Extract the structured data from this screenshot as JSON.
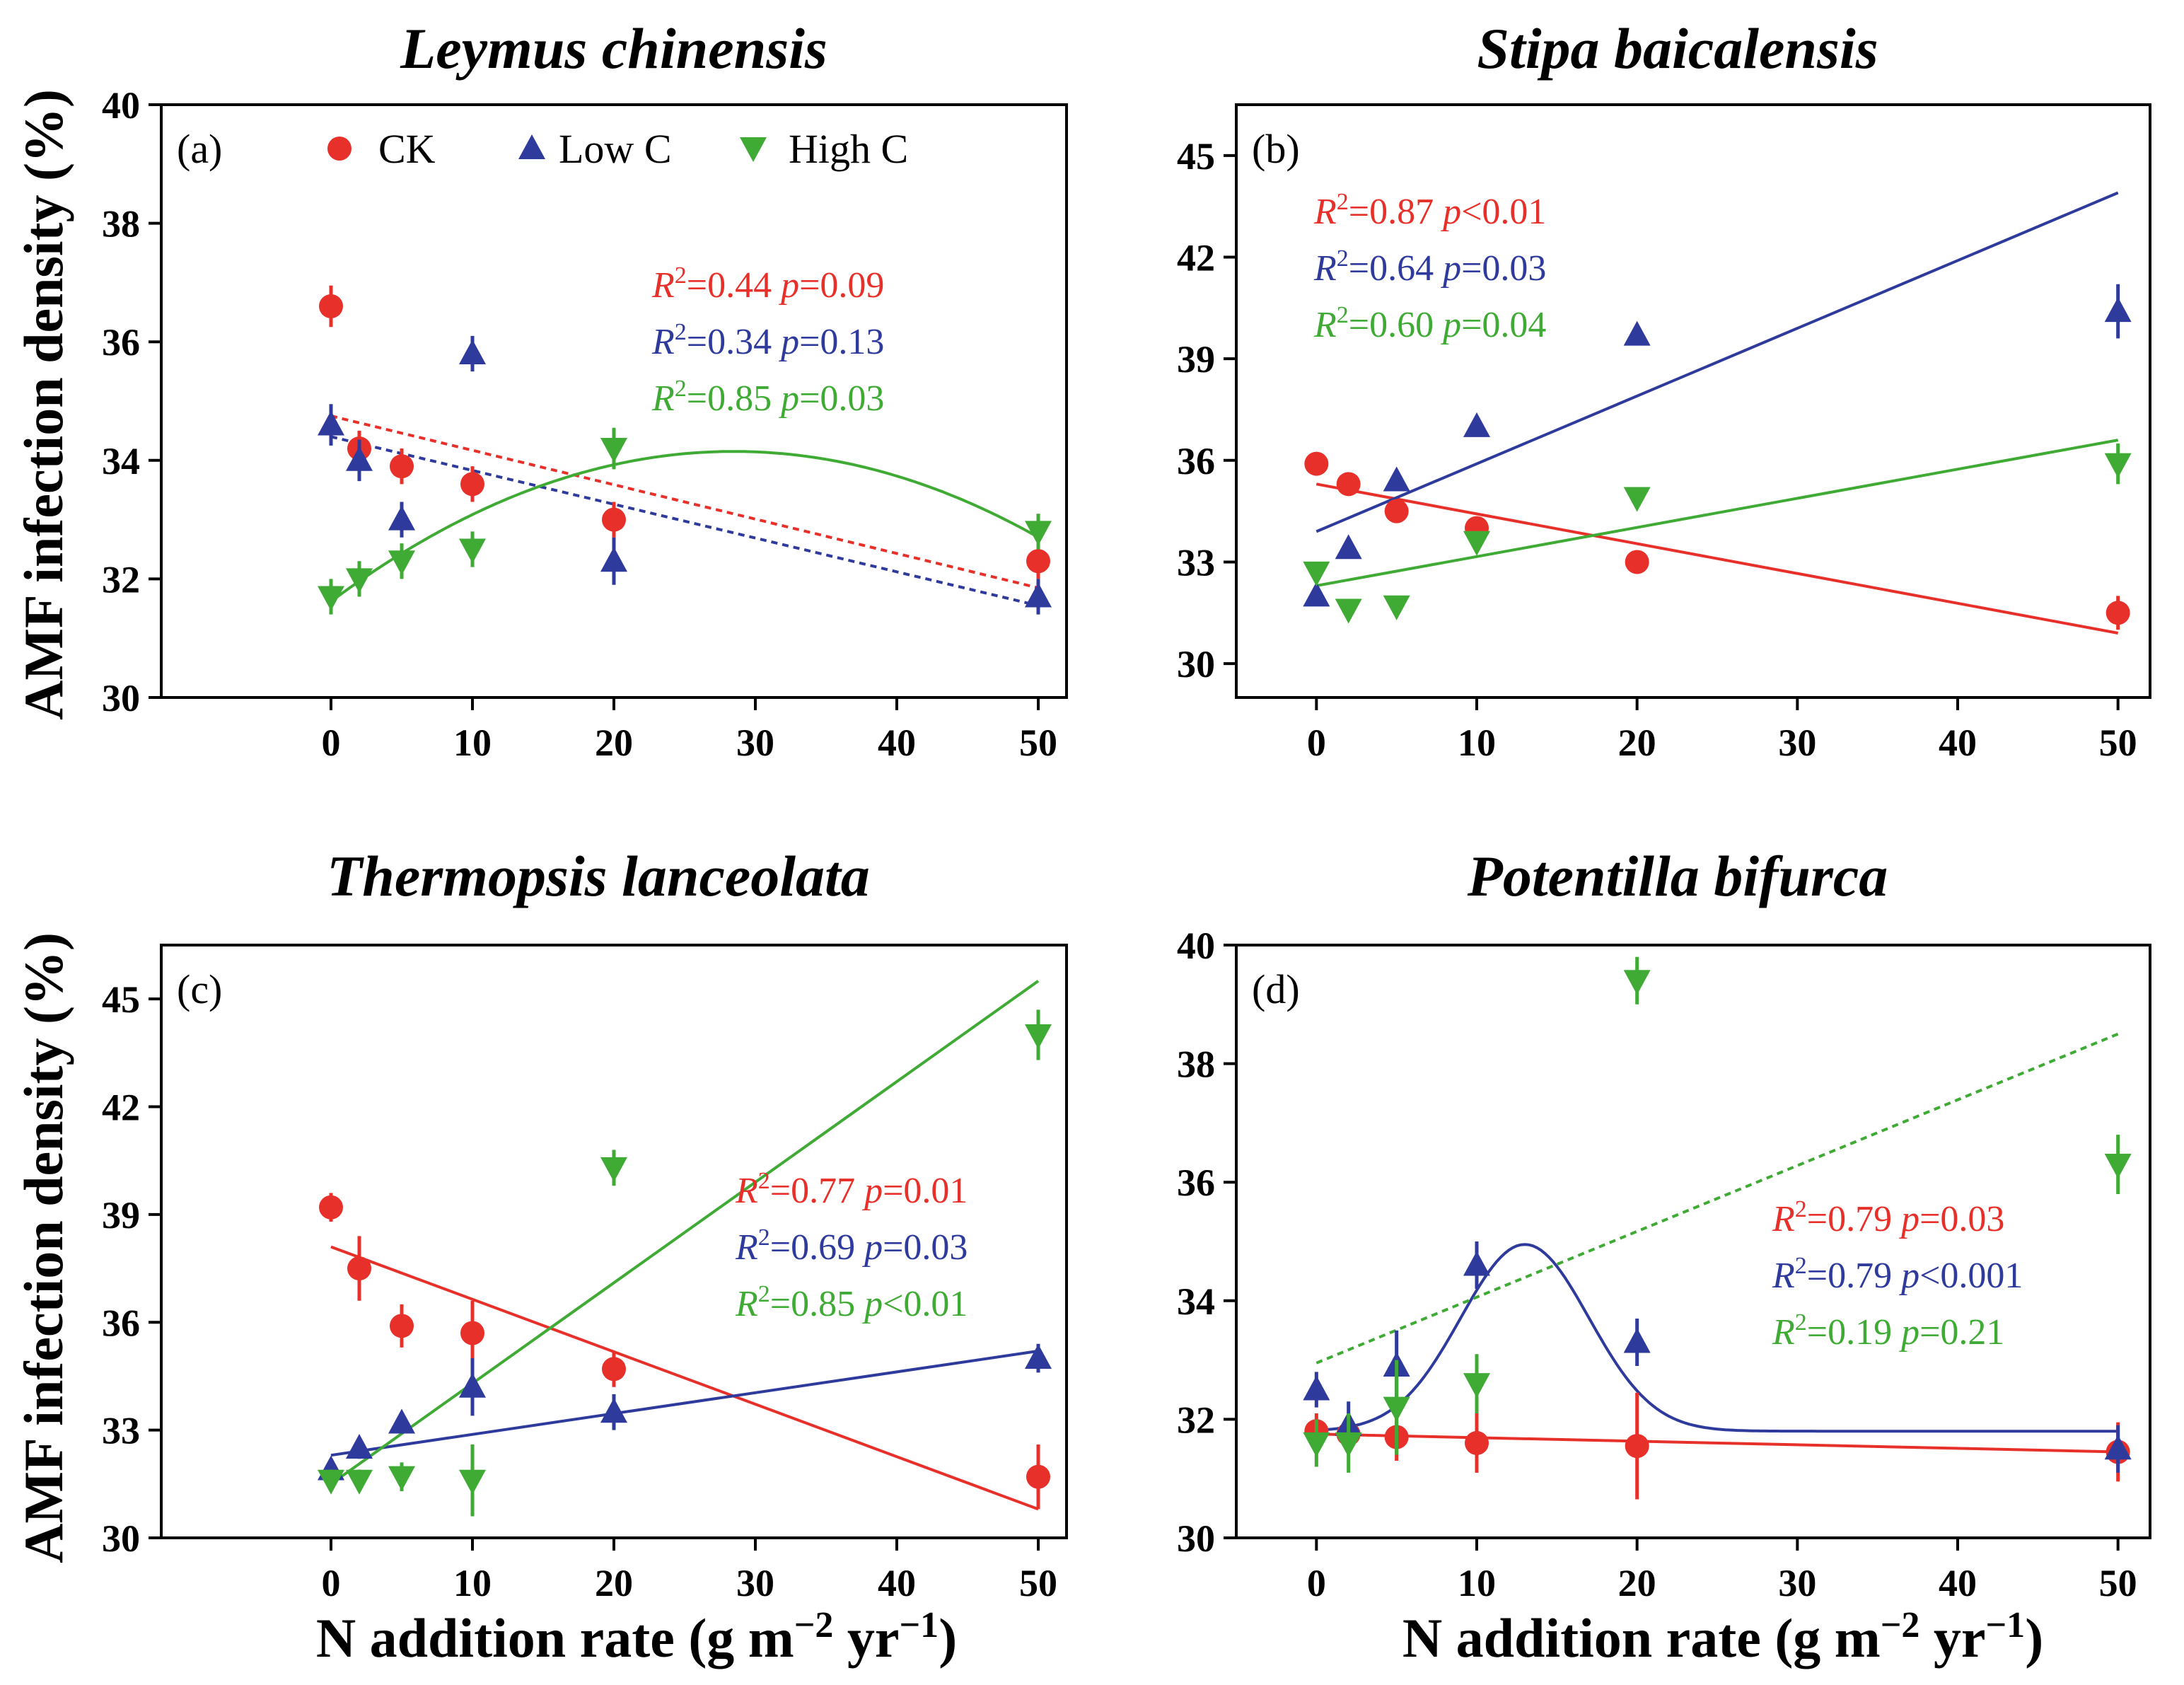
{
  "colors": {
    "ck": "#e8302a",
    "low": "#2e3a9c",
    "high": "#3fab35"
  },
  "y_axis_label": "AMF infection density (%)",
  "x_axis_label_base": "N addition rate (g m",
  "x_axis_label_exp1": "−2",
  "x_axis_label_mid": " yr",
  "x_axis_label_exp2": "−1",
  "x_axis_label_end": ")",
  "legend": {
    "ck": "CK",
    "low": "Low C",
    "high": "High C"
  },
  "chart_data": [
    {
      "type": "scatter",
      "id": "a",
      "title": "Leymus chinensis",
      "letter": "(a)",
      "xlim": [
        -12,
        52
      ],
      "ylim": [
        30,
        40
      ],
      "xticks": [
        0,
        10,
        20,
        30,
        40,
        50
      ],
      "yticks": [
        30,
        32,
        34,
        36,
        38,
        40
      ],
      "stats_pos": "top-right",
      "series": [
        {
          "name": "CK",
          "key": "ck",
          "marker": "circle",
          "x": [
            0,
            2,
            5,
            10,
            20,
            50
          ],
          "y": [
            36.6,
            34.2,
            33.9,
            33.6,
            33.0,
            32.3
          ],
          "err": [
            0.35,
            0.3,
            0.3,
            0.3,
            0.3,
            0.3
          ],
          "fit": {
            "kind": "linear",
            "style": "dotted",
            "x0": 0,
            "y0": 34.75,
            "x1": 50,
            "y1": 31.85
          },
          "stat": {
            "r2": "0.44",
            "op": "=",
            "p": "0.09"
          }
        },
        {
          "name": "Low C",
          "key": "low",
          "marker": "triangle-up",
          "x": [
            0,
            2,
            5,
            10,
            20,
            50
          ],
          "y": [
            34.6,
            34.0,
            33.0,
            35.8,
            32.3,
            31.7
          ],
          "err": [
            0.35,
            0.35,
            0.3,
            0.3,
            0.4,
            0.3
          ],
          "fit": {
            "kind": "linear",
            "style": "dotted",
            "x0": 0,
            "y0": 34.4,
            "x1": 50,
            "y1": 31.55
          },
          "stat": {
            "r2": "0.34",
            "op": "=",
            "p": "0.13"
          }
        },
        {
          "name": "High C",
          "key": "high",
          "marker": "triangle-down",
          "x": [
            0,
            2,
            5,
            10,
            20,
            50
          ],
          "y": [
            31.7,
            32.0,
            32.3,
            32.5,
            34.2,
            32.8
          ],
          "err": [
            0.3,
            0.3,
            0.3,
            0.3,
            0.35,
            0.3
          ],
          "fit": {
            "kind": "quadratic",
            "style": "solid",
            "a": -0.003122,
            "b": 0.17777,
            "c": 31.62
          },
          "stat": {
            "r2": "0.85",
            "op": "=",
            "p": "0.03"
          }
        }
      ]
    },
    {
      "type": "scatter",
      "id": "b",
      "title": "Stipa baicalensis",
      "letter": "(b)",
      "xlim": [
        -5,
        52
      ],
      "ylim": [
        29,
        46.5
      ],
      "xticks": [
        0,
        10,
        20,
        30,
        40,
        50
      ],
      "yticks": [
        30,
        33,
        36,
        39,
        42,
        45
      ],
      "stats_pos": "top-left",
      "series": [
        {
          "name": "CK",
          "key": "ck",
          "marker": "circle",
          "x": [
            0,
            2,
            5,
            10,
            20,
            50
          ],
          "y": [
            35.9,
            35.3,
            34.5,
            34.0,
            33.0,
            31.5
          ],
          "err": [
            0.3,
            0.3,
            0.3,
            0.3,
            0.3,
            0.5
          ],
          "fit": {
            "kind": "linear",
            "style": "solid",
            "x0": 0,
            "y0": 35.3,
            "x1": 50,
            "y1": 30.9
          },
          "stat": {
            "r2": "0.87",
            "op": "<",
            "p": "0.01"
          }
        },
        {
          "name": "Low C",
          "key": "low",
          "marker": "triangle-up",
          "x": [
            0,
            2,
            5,
            10,
            20,
            50
          ],
          "y": [
            32.0,
            33.4,
            35.4,
            37.0,
            39.7,
            40.4
          ],
          "err": [
            0.3,
            0.3,
            0.3,
            0.3,
            0.3,
            0.8
          ],
          "fit": {
            "kind": "linear",
            "style": "solid",
            "x0": 0,
            "y0": 33.9,
            "x1": 50,
            "y1": 43.9
          },
          "stat": {
            "r2": "0.64",
            "op": "=",
            "p": "0.03"
          }
        },
        {
          "name": "High C",
          "key": "high",
          "marker": "triangle-down",
          "x": [
            0,
            2,
            5,
            10,
            20,
            50
          ],
          "y": [
            32.7,
            31.6,
            31.7,
            33.6,
            34.9,
            35.9
          ],
          "err": [
            0.3,
            0.3,
            0.3,
            0.3,
            0.3,
            0.6
          ],
          "fit": {
            "kind": "linear",
            "style": "solid",
            "x0": 0,
            "y0": 32.3,
            "x1": 50,
            "y1": 36.6
          },
          "stat": {
            "r2": "0.60",
            "op": "=",
            "p": "0.04"
          }
        }
      ]
    },
    {
      "type": "scatter",
      "id": "c",
      "title": "Thermopsis lanceolata",
      "letter": "(c)",
      "xlim": [
        -12,
        52
      ],
      "ylim": [
        30,
        46.5
      ],
      "xticks": [
        0,
        10,
        20,
        30,
        40,
        50
      ],
      "yticks": [
        30,
        33,
        36,
        39,
        42,
        45
      ],
      "stats_pos": "middle-right",
      "series": [
        {
          "name": "CK",
          "key": "ck",
          "marker": "circle",
          "x": [
            0,
            2,
            5,
            10,
            20,
            50
          ],
          "y": [
            39.2,
            37.5,
            35.9,
            35.7,
            34.7,
            31.7
          ],
          "err": [
            0.4,
            0.9,
            0.6,
            0.9,
            0.5,
            0.9
          ],
          "fit": {
            "kind": "linear",
            "style": "solid",
            "x0": 0,
            "y0": 38.1,
            "x1": 50,
            "y1": 30.8
          },
          "stat": {
            "r2": "0.77",
            "op": "=",
            "p": "0.01"
          }
        },
        {
          "name": "Low C",
          "key": "low",
          "marker": "triangle-up",
          "x": [
            0,
            2,
            5,
            10,
            20,
            50
          ],
          "y": [
            31.9,
            32.5,
            33.2,
            34.2,
            33.5,
            35.0
          ],
          "err": [
            0.3,
            0.3,
            0.3,
            0.8,
            0.5,
            0.4
          ],
          "fit": {
            "kind": "linear",
            "style": "solid",
            "x0": 0,
            "y0": 32.3,
            "x1": 50,
            "y1": 35.2
          },
          "stat": {
            "r2": "0.69",
            "op": "=",
            "p": "0.03"
          }
        },
        {
          "name": "High C",
          "key": "high",
          "marker": "triangle-down",
          "x": [
            0,
            2,
            5,
            10,
            20,
            50
          ],
          "y": [
            31.6,
            31.6,
            31.7,
            31.6,
            40.3,
            44.0
          ],
          "err": [
            0.3,
            0.3,
            0.4,
            1.0,
            0.5,
            0.7
          ],
          "fit": {
            "kind": "linear",
            "style": "solid",
            "x0": 0,
            "y0": 31.5,
            "x1": 50,
            "y1": 45.5
          },
          "stat": {
            "r2": "0.85",
            "op": "<",
            "p": "0.01"
          }
        }
      ]
    },
    {
      "type": "scatter",
      "id": "d",
      "title": "Potentilla bifurca",
      "letter": "(d)",
      "xlim": [
        -5,
        52
      ],
      "ylim": [
        30,
        40
      ],
      "xticks": [
        0,
        10,
        20,
        30,
        40,
        50
      ],
      "yticks": [
        30,
        32,
        34,
        36,
        38,
        40
      ],
      "stats_pos": "middle-right",
      "series": [
        {
          "name": "CK",
          "key": "ck",
          "marker": "circle",
          "x": [
            0,
            2,
            5,
            10,
            20,
            50
          ],
          "y": [
            31.8,
            31.75,
            31.7,
            31.6,
            31.55,
            31.45
          ],
          "err": [
            0.3,
            0.3,
            0.4,
            0.5,
            0.9,
            0.5
          ],
          "fit": {
            "kind": "linear",
            "style": "solid",
            "x0": 0,
            "y0": 31.75,
            "x1": 50,
            "y1": 31.45
          },
          "stat": {
            "r2": "0.79",
            "op": "=",
            "p": "0.03"
          }
        },
        {
          "name": "Low C",
          "key": "low",
          "marker": "triangle-up",
          "x": [
            0,
            2,
            5,
            10,
            20,
            50
          ],
          "y": [
            32.5,
            31.9,
            32.9,
            34.6,
            33.3,
            31.5
          ],
          "err": [
            0.3,
            0.4,
            0.6,
            0.4,
            0.4,
            0.4
          ],
          "fit": {
            "kind": "gaussian",
            "style": "solid",
            "base": 31.8,
            "amp": 3.15,
            "mu": 13.0,
            "sigma": 4.0
          },
          "stat": {
            "r2": "0.79",
            "op": "<",
            "p": "0.001"
          }
        },
        {
          "name": "High C",
          "key": "high",
          "marker": "triangle-down",
          "x": [
            0,
            2,
            5,
            10,
            20,
            50
          ],
          "y": [
            31.6,
            31.6,
            32.2,
            32.6,
            39.4,
            36.3
          ],
          "err": [
            0.4,
            0.5,
            0.8,
            0.5,
            0.4,
            0.5
          ],
          "fit": {
            "kind": "linear",
            "style": "dotted",
            "x0": 0,
            "y0": 32.95,
            "x1": 50,
            "y1": 38.5
          },
          "stat": {
            "r2": "0.19",
            "op": "=",
            "p": "0.21"
          }
        }
      ]
    }
  ]
}
